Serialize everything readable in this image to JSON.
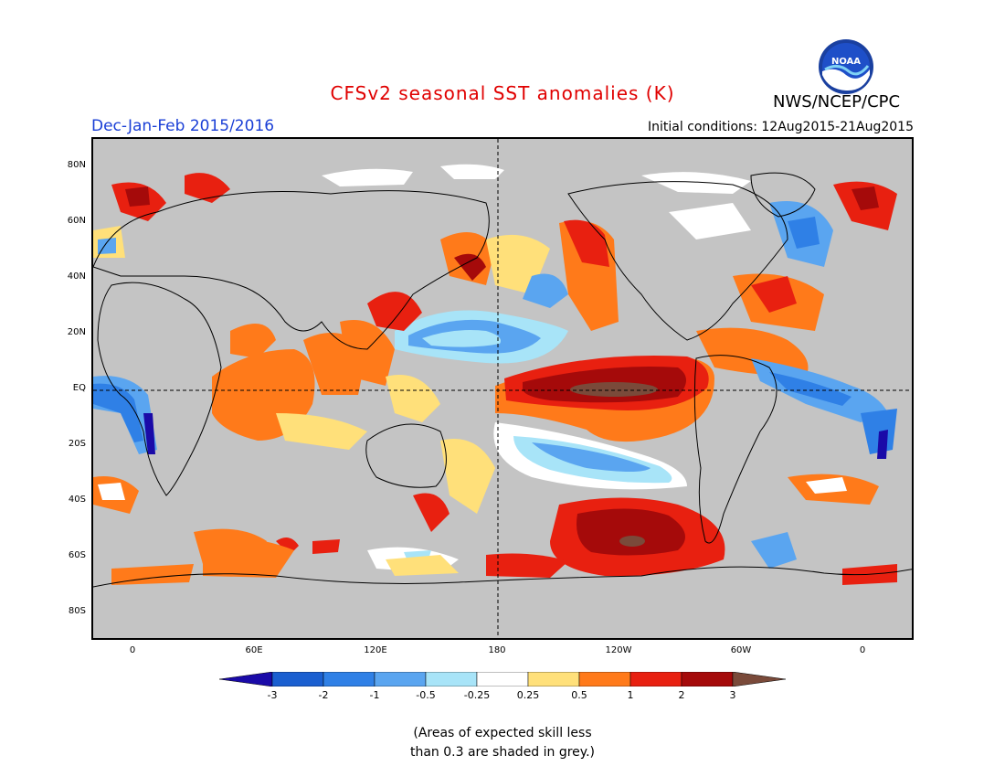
{
  "title": "CFSv2 seasonal SST anomalies (K)",
  "season": "Dec-Jan-Feb 2015/2016",
  "initial_conditions": "Initial conditions: 12Aug2015-21Aug2015",
  "agency": "NWS/NCEP/CPC",
  "logo_text": "NOAA",
  "lat_labels": [
    "80N",
    "60N",
    "40N",
    "20N",
    "EQ",
    "20S",
    "40S",
    "60S",
    "80S"
  ],
  "lon_labels": [
    "0",
    "60E",
    "120E",
    "180",
    "120W",
    "60W",
    "0"
  ],
  "colorbar": {
    "labels": [
      "-3",
      "-2",
      "-1",
      "-0.5",
      "-0.25",
      "0.25",
      "0.5",
      "1",
      "2",
      "3"
    ],
    "colors": [
      "#1a0aa8",
      "#1a5fd0",
      "#2f80e6",
      "#5aa5f0",
      "#a8e4f8",
      "#ffffff",
      "#ffe07a",
      "#ff7a1a",
      "#e82010",
      "#a50a0a",
      "#7a4a3a"
    ]
  },
  "note_lines": [
    "(Areas of expected skill less",
    "than 0.3 are shaded in grey.)"
  ],
  "colors": {
    "land": "#c4c4c4",
    "ocean_grey": "#c4c4c4",
    "title": "#e00000",
    "season": "#1a3fd6"
  }
}
